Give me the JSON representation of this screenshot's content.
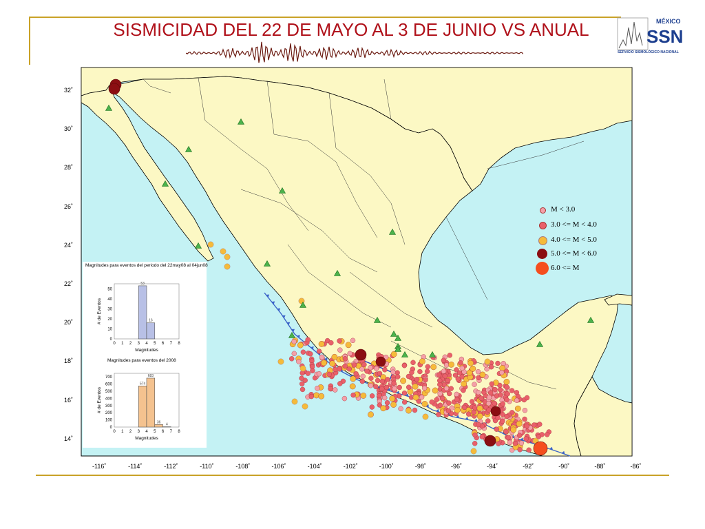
{
  "header": {
    "title": "SISMICIDAD DEL 22 DE MAYO AL 3 DE JUNIO VS ANUAL"
  },
  "logo": {
    "line1": "MÉXICO",
    "line2": "SSN",
    "line3": "SERVICIO SISMOLÓGICO NACIONAL"
  },
  "map": {
    "x_ticks": [
      "-116˚",
      "-114˚",
      "-112˚",
      "-110˚",
      "-108˚",
      "-106˚",
      "-104˚",
      "-102˚",
      "-100˚",
      "-98˚",
      "-96˚",
      "-94˚",
      "-92˚",
      "-90˚",
      "-88˚",
      "-86˚"
    ],
    "y_ticks": [
      "32˚",
      "30˚",
      "28˚",
      "26˚",
      "24˚",
      "22˚",
      "20˚",
      "18˚",
      "16˚",
      "14˚"
    ],
    "colors": {
      "ocean": "#c4f2f4",
      "land": "#fcf8c4",
      "border": "#000000",
      "station": "#4cb34c",
      "trench": "#3b63c8"
    }
  },
  "legend": {
    "items": [
      {
        "label": "M < 3.0",
        "color": "#f4a0a8"
      },
      {
        "label": "3.0 <= M < 4.0",
        "color": "#e9606a"
      },
      {
        "label": "4.0 <= M < 5.0",
        "color": "#f5bb3a"
      },
      {
        "label": "5.0 <= M < 6.0",
        "color": "#8b0e12"
      },
      {
        "label": "6.0 <= M",
        "color": "#f54e1e"
      }
    ]
  },
  "inset": {
    "title1": "Magnitudes para eventos del periodo del 22may08 al 04jun08",
    "title2": "Magnitudes para eventos del 2008",
    "ylabel": "# de Eventos",
    "xlabel": "Magnitudes",
    "hist1": {
      "x_ticks": [
        "0",
        "1",
        "2",
        "3",
        "4",
        "5",
        "6",
        "7",
        "8"
      ],
      "y_ticks": [
        "0",
        "10",
        "20",
        "30",
        "40",
        "50"
      ],
      "bars": [
        {
          "from": 3,
          "to": 4,
          "value": 53,
          "label": "53"
        },
        {
          "from": 4,
          "to": 5,
          "value": 16,
          "label": "16"
        }
      ],
      "color": "#b8c0e6"
    },
    "hist2": {
      "x_ticks": [
        "0",
        "1",
        "2",
        "3",
        "4",
        "5",
        "6",
        "7",
        "8"
      ],
      "y_ticks": [
        "0",
        "100",
        "200",
        "300",
        "400",
        "500",
        "600",
        "700"
      ],
      "bars": [
        {
          "from": 3,
          "to": 4,
          "value": 574,
          "label": "574"
        },
        {
          "from": 4,
          "to": 5,
          "value": 683,
          "label": "683"
        },
        {
          "from": 5,
          "to": 6,
          "value": 36,
          "label": "36"
        },
        {
          "from": 6,
          "to": 7,
          "value": 4,
          "label": "4"
        }
      ],
      "color": "#f4c28f"
    }
  }
}
